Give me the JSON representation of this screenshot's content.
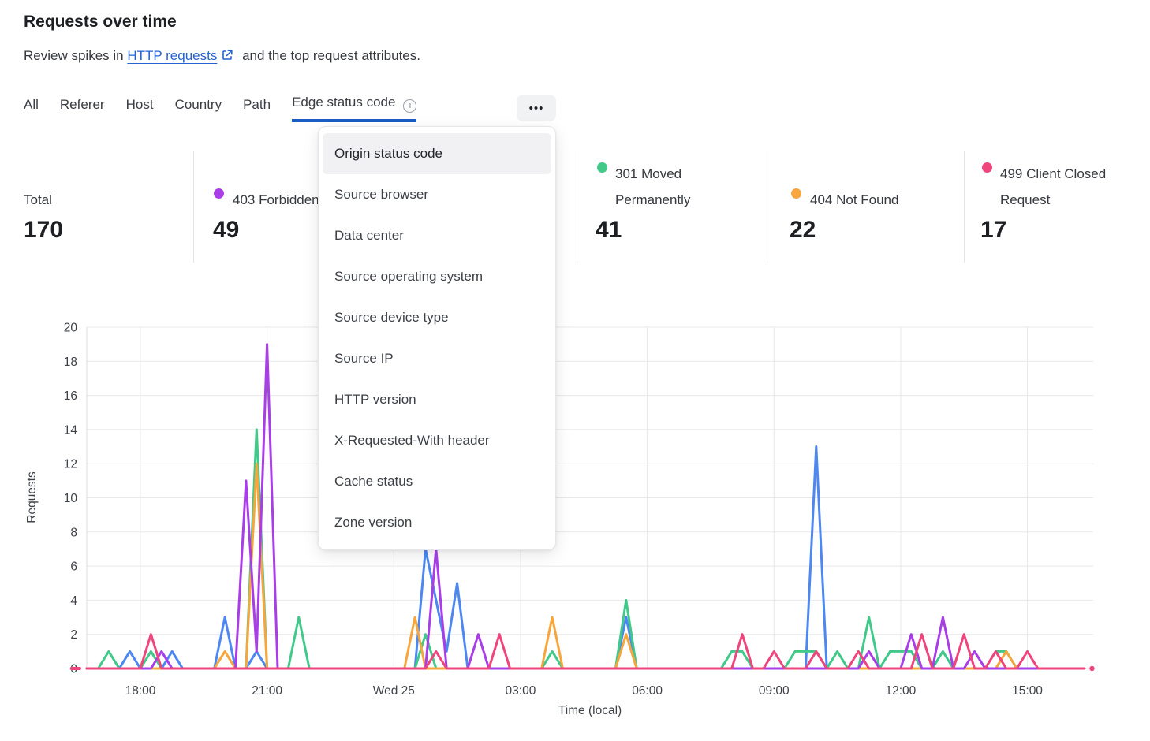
{
  "page": {
    "title": "Requests over time",
    "subtitle_prefix": "Review spikes in",
    "subtitle_link": "HTTP requests",
    "subtitle_suffix": "and the top request attributes."
  },
  "tabs": {
    "items": [
      "All",
      "Referer",
      "Host",
      "Country",
      "Path",
      "Edge status code"
    ],
    "active": "Edge status code",
    "more_label": "•••"
  },
  "dropdown": {
    "highlighted": "Origin status code",
    "items": [
      "Origin status code",
      "Source browser",
      "Data center",
      "Source operating system",
      "Source device type",
      "Source IP",
      "HTTP version",
      "X-Requested-With header",
      "Cache status",
      "Zone version"
    ]
  },
  "stats": [
    {
      "label": "Total",
      "value": "170",
      "color": null
    },
    {
      "label": "403 Forbidden",
      "value": "49",
      "color": "#a93ee9"
    },
    {
      "label": "301 Moved Permanently",
      "value": "41",
      "color": "#41c98a"
    },
    {
      "label": "404 Not Found",
      "value": "22",
      "color": "#f6a63c"
    },
    {
      "label": "499 Client Closed Request",
      "value": "17",
      "color": "#f0457c"
    }
  ],
  "chart_data": {
    "type": "line",
    "xlabel": "Time (local)",
    "ylabel": "Requests",
    "ylim": [
      0,
      20
    ],
    "yticks": [
      0,
      2,
      4,
      6,
      8,
      10,
      12,
      14,
      16,
      18,
      20
    ],
    "x_unit": "hours relative to the 18:00 tick",
    "xticks": [
      {
        "t": 0,
        "label": "18:00"
      },
      {
        "t": 3,
        "label": "21:00"
      },
      {
        "t": 6,
        "label": "Wed 25"
      },
      {
        "t": 9,
        "label": "03:00"
      },
      {
        "t": 12,
        "label": "06:00"
      },
      {
        "t": 15,
        "label": "09:00"
      },
      {
        "t": 18,
        "label": "12:00"
      },
      {
        "t": 21,
        "label": "15:00"
      }
    ],
    "series": [
      {
        "name": "",
        "legend_hidden_behind_menu": true,
        "color": "#4d87f1",
        "points": [
          [
            -1.27,
            0
          ],
          [
            -0.5,
            0
          ],
          [
            -0.25,
            1
          ],
          [
            0,
            0
          ],
          [
            0.5,
            0
          ],
          [
            0.75,
            1
          ],
          [
            1,
            0
          ],
          [
            1.75,
            0
          ],
          [
            2,
            3
          ],
          [
            2.25,
            0
          ],
          [
            2.5,
            0
          ],
          [
            2.75,
            1
          ],
          [
            3,
            0
          ],
          [
            6.5,
            0
          ],
          [
            6.75,
            7
          ],
          [
            7.25,
            1
          ],
          [
            7.5,
            5
          ],
          [
            7.75,
            0
          ],
          [
            11.25,
            0
          ],
          [
            11.5,
            3
          ],
          [
            11.75,
            0
          ],
          [
            15.75,
            0
          ],
          [
            16,
            13
          ],
          [
            16.25,
            0
          ],
          [
            22.35,
            0
          ]
        ]
      },
      {
        "name": "301 Moved Permanently",
        "color": "#41c98a",
        "points": [
          [
            -1.27,
            0
          ],
          [
            -1,
            0
          ],
          [
            -0.75,
            1
          ],
          [
            -0.5,
            0
          ],
          [
            0,
            0
          ],
          [
            0.25,
            1
          ],
          [
            0.5,
            0
          ],
          [
            2.5,
            0
          ],
          [
            2.75,
            14
          ],
          [
            3,
            0
          ],
          [
            3.5,
            0
          ],
          [
            3.75,
            3
          ],
          [
            4,
            0
          ],
          [
            6.5,
            0
          ],
          [
            6.75,
            2
          ],
          [
            7,
            0
          ],
          [
            9.5,
            0
          ],
          [
            9.75,
            1
          ],
          [
            10,
            0
          ],
          [
            11.25,
            0
          ],
          [
            11.5,
            4
          ],
          [
            11.75,
            0
          ],
          [
            13.75,
            0
          ],
          [
            14,
            1
          ],
          [
            14.25,
            1
          ],
          [
            14.5,
            0
          ],
          [
            15.25,
            0
          ],
          [
            15.5,
            1
          ],
          [
            16,
            1
          ],
          [
            16.25,
            0
          ],
          [
            16.5,
            1
          ],
          [
            16.75,
            0
          ],
          [
            17,
            0
          ],
          [
            17.25,
            3
          ],
          [
            17.5,
            0
          ],
          [
            17.75,
            1
          ],
          [
            18.25,
            1
          ],
          [
            18.5,
            0
          ],
          [
            18.75,
            0
          ],
          [
            19,
            1
          ],
          [
            19.25,
            0
          ],
          [
            20,
            0
          ],
          [
            20.25,
            1
          ],
          [
            20.5,
            1
          ],
          [
            20.75,
            0
          ],
          [
            22.35,
            0
          ]
        ]
      },
      {
        "name": "404 Not Found",
        "color": "#f6a63c",
        "points": [
          [
            -1.27,
            0
          ],
          [
            1.75,
            0
          ],
          [
            2,
            1
          ],
          [
            2.25,
            0
          ],
          [
            2.5,
            0
          ],
          [
            2.75,
            12
          ],
          [
            3,
            0
          ],
          [
            6.25,
            0
          ],
          [
            6.5,
            3
          ],
          [
            6.75,
            0
          ],
          [
            9.5,
            0
          ],
          [
            9.75,
            3
          ],
          [
            10,
            0
          ],
          [
            11.25,
            0
          ],
          [
            11.5,
            2
          ],
          [
            11.75,
            0
          ],
          [
            20.25,
            0
          ],
          [
            20.5,
            1
          ],
          [
            20.75,
            0
          ],
          [
            22.35,
            0
          ]
        ]
      },
      {
        "name": "403 Forbidden",
        "color": "#a93ee9",
        "points": [
          [
            -1.27,
            0
          ],
          [
            0.25,
            0
          ],
          [
            0.5,
            1
          ],
          [
            0.75,
            0
          ],
          [
            2.25,
            0
          ],
          [
            2.5,
            11
          ],
          [
            2.75,
            1
          ],
          [
            3,
            19
          ],
          [
            3.25,
            0
          ],
          [
            6.75,
            0
          ],
          [
            7,
            7
          ],
          [
            7.25,
            0
          ],
          [
            7.75,
            0
          ],
          [
            8,
            2
          ],
          [
            8.25,
            0
          ],
          [
            17,
            0
          ],
          [
            17.25,
            1
          ],
          [
            17.5,
            0
          ],
          [
            18,
            0
          ],
          [
            18.25,
            2
          ],
          [
            18.5,
            0
          ],
          [
            18.75,
            0
          ],
          [
            19,
            3
          ],
          [
            19.25,
            0
          ],
          [
            19.5,
            0
          ],
          [
            19.75,
            1
          ],
          [
            20,
            0
          ],
          [
            22.35,
            0
          ]
        ]
      },
      {
        "name": "499 Client Closed Request",
        "color": "#f0457c",
        "leading_dash": [
          -1.63,
          -1.44
        ],
        "trailing_dot_t": 22.53,
        "points": [
          [
            -1.27,
            0
          ],
          [
            0,
            0
          ],
          [
            0.25,
            2
          ],
          [
            0.5,
            0
          ],
          [
            6.75,
            0
          ],
          [
            7,
            1
          ],
          [
            7.25,
            0
          ],
          [
            8.25,
            0
          ],
          [
            8.5,
            2
          ],
          [
            8.75,
            0
          ],
          [
            14,
            0
          ],
          [
            14.25,
            2
          ],
          [
            14.5,
            0
          ],
          [
            14.75,
            0
          ],
          [
            15,
            1
          ],
          [
            15.25,
            0
          ],
          [
            15.75,
            0
          ],
          [
            16,
            1
          ],
          [
            16.25,
            0
          ],
          [
            16.75,
            0
          ],
          [
            17,
            1
          ],
          [
            17.25,
            0
          ],
          [
            18.25,
            0
          ],
          [
            18.5,
            2
          ],
          [
            18.75,
            0
          ],
          [
            19.25,
            0
          ],
          [
            19.5,
            2
          ],
          [
            19.75,
            0
          ],
          [
            20,
            0
          ],
          [
            20.25,
            1
          ],
          [
            20.5,
            0
          ],
          [
            20.75,
            0
          ],
          [
            21,
            1
          ],
          [
            21.25,
            0
          ],
          [
            22.35,
            0
          ]
        ]
      }
    ]
  }
}
